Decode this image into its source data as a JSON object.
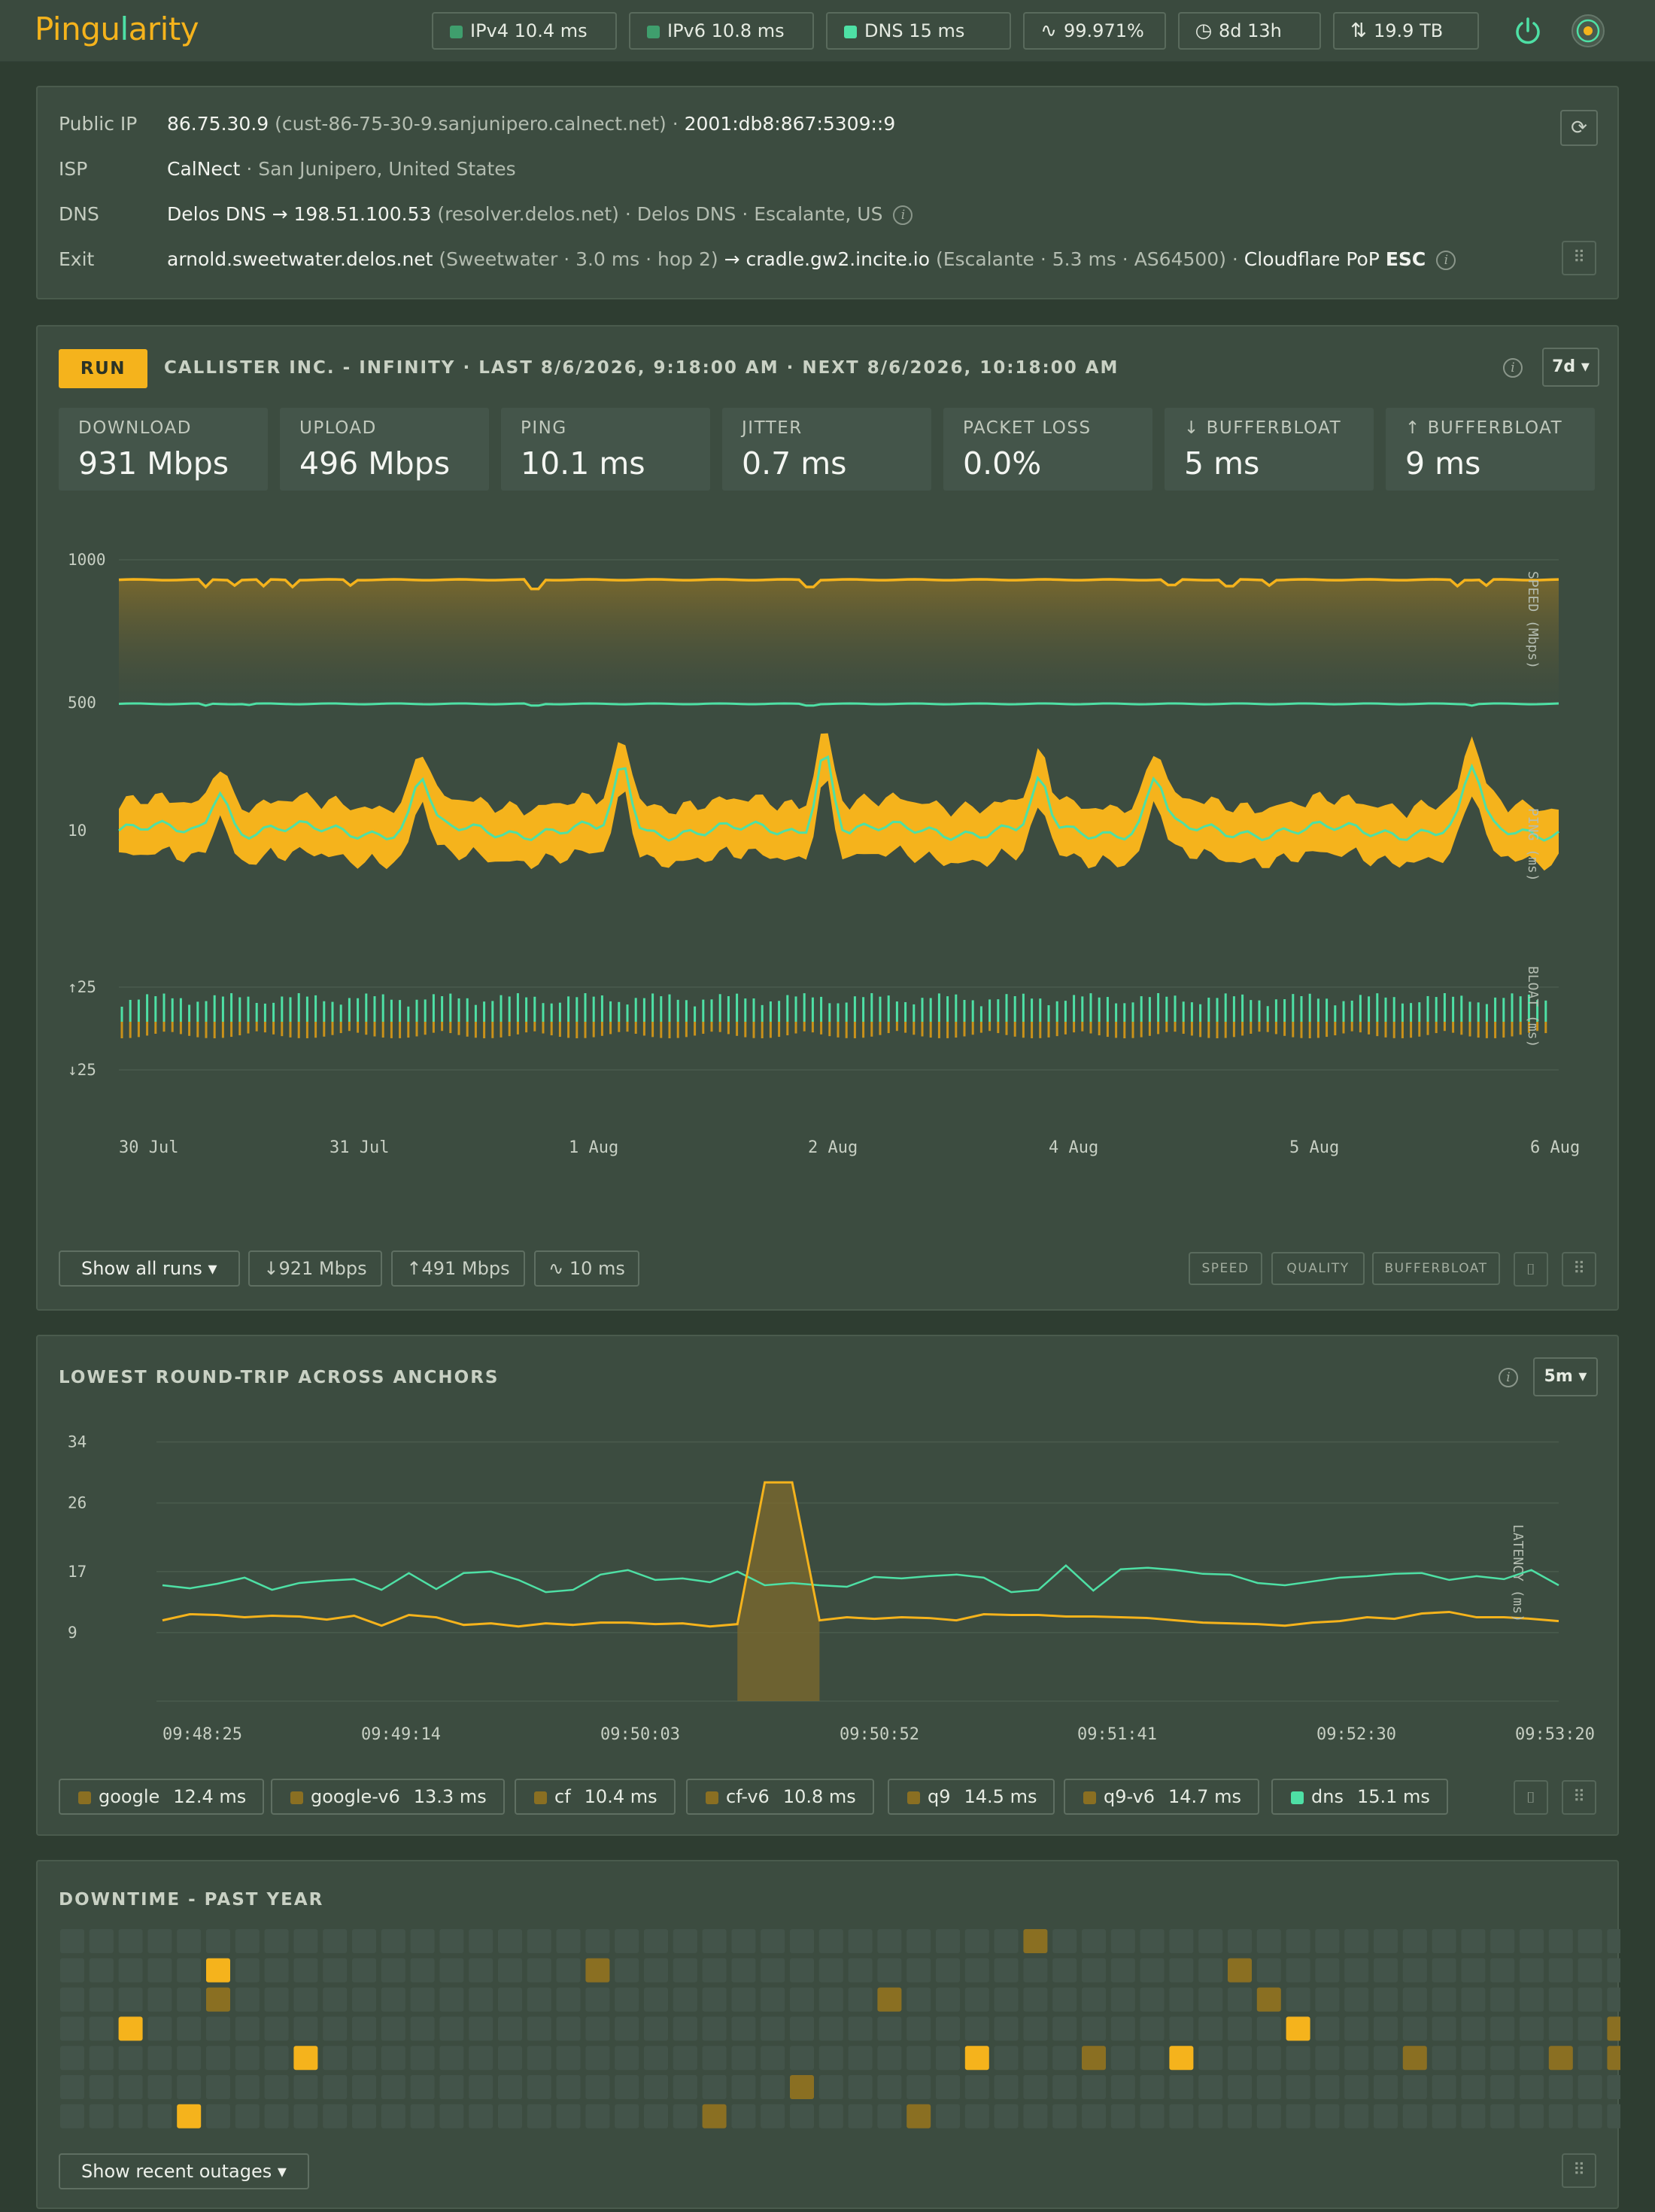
{
  "app": {
    "logo_prefix": "Pingu",
    "logo_accent": "l",
    "logo_suffix": "arity"
  },
  "topbar": {
    "pills": [
      {
        "icon": "status-square",
        "text": "IPv4 10.4 ms",
        "color": "#3f9e6d"
      },
      {
        "icon": "status-square",
        "text": "IPv6 10.8 ms",
        "color": "#3f9e6d"
      },
      {
        "icon": "status-square",
        "text": "DNS 15 ms",
        "color": "#4ee0a5"
      },
      {
        "icon": "pulse-icon",
        "text": "99.971%"
      },
      {
        "icon": "clock-icon",
        "text": "8d 13h"
      },
      {
        "icon": "transfer-icon",
        "text": "19.9 TB"
      }
    ]
  },
  "info": {
    "public_ip": {
      "label": "Public IP",
      "ip": "86.75.30.9",
      "host": "(cust-86-75-30-9.sanjunipero.calnect.net)",
      "sep": "·",
      "ipv6": "2001:db8:867:5309::9"
    },
    "isp": {
      "label": "ISP",
      "name": "CalNect",
      "rest": "· San Junipero, United States"
    },
    "dns": {
      "label": "DNS",
      "name": "Delos DNS",
      "arrow": "→",
      "ip": "198.51.100.53",
      "rest": "(resolver.delos.net) · Delos DNS · Escalante, US"
    },
    "exit": {
      "label": "Exit",
      "hop1": "arnold.sweetwater.delos.net",
      "hop1_meta": "(Sweetwater · 3.0 ms · hop 2)",
      "arrow": "→",
      "hop2": "cradle.gw2.incite.io",
      "hop2_meta": "(Escalante · 5.3 ms · AS64500) ·",
      "pop_label": "Cloudflare PoP",
      "pop": "ESC"
    }
  },
  "speed": {
    "run_label": "RUN",
    "title": "CALLISTER INC. - INFINITY · LAST 8/6/2026, 9:18:00 AM · NEXT 8/6/2026, 10:18:00 AM",
    "range": "7d ▾",
    "stats": [
      {
        "label": "DOWNLOAD",
        "value": "931 Mbps"
      },
      {
        "label": "UPLOAD",
        "value": "496 Mbps"
      },
      {
        "label": "PING",
        "value": "10.1 ms"
      },
      {
        "label": "JITTER",
        "value": "0.7 ms"
      },
      {
        "label": "PACKET LOSS",
        "value": "0.0%"
      },
      {
        "label": "↓ BUFFERBLOAT",
        "value": "5 ms"
      },
      {
        "label": "↑ BUFFERBLOAT",
        "value": "9 ms"
      }
    ],
    "show_runs": "Show all runs ▾",
    "chips": [
      "↓921 Mbps",
      "↑491 Mbps",
      "∿ 10 ms"
    ],
    "toggles": [
      "SPEED",
      "QUALITY",
      "BUFFERBLOAT"
    ]
  },
  "anchors": {
    "title": "LOWEST ROUND-TRIP ACROSS ANCHORS",
    "range": "5m ▾",
    "legend": [
      {
        "name": "google",
        "value": "12.4 ms",
        "color": "#8a6f22"
      },
      {
        "name": "google-v6",
        "value": "13.3 ms",
        "color": "#8a6f22"
      },
      {
        "name": "cf",
        "value": "10.4 ms",
        "color": "#8a6f22"
      },
      {
        "name": "cf-v6",
        "value": "10.8 ms",
        "color": "#8a6f22"
      },
      {
        "name": "q9",
        "value": "14.5 ms",
        "color": "#8a6f22"
      },
      {
        "name": "q9-v6",
        "value": "14.7 ms",
        "color": "#8a6f22"
      },
      {
        "name": "dns",
        "value": "15.1 ms",
        "color": "#4ee0a5"
      }
    ]
  },
  "downtime": {
    "title": "DOWNTIME - PAST YEAR",
    "button": "Show recent outages ▾"
  },
  "chart_data": [
    {
      "type": "line",
      "title": "",
      "layers": [
        "SPEED (Mbps)",
        "PING (ms)",
        "BLOAT (ms)"
      ],
      "x_ticks": [
        "30 Jul",
        "31 Jul",
        "1 Aug",
        "2 Aug",
        "4 Aug",
        "5 Aug",
        "6 Aug"
      ],
      "speed_ticks": [
        "1000",
        "500"
      ],
      "ping_ticks": [
        "10"
      ],
      "bloat_ticks": [
        "↑25",
        "↓25"
      ],
      "speed_ylim": [
        0,
        1000
      ],
      "series": [
        {
          "name": "",
          "color": "#f5b31c",
          "baseline": 930,
          "dips": [
            [
              0.06,
              905
            ],
            [
              0.08,
              910
            ],
            [
              0.1,
              908
            ],
            [
              0.12,
              905
            ],
            [
              0.16,
              910
            ],
            [
              0.29,
              898
            ],
            [
              0.48,
              905
            ],
            [
              0.73,
              912
            ],
            [
              0.77,
              908
            ],
            [
              0.8,
              910
            ],
            [
              0.93,
              908
            ],
            [
              0.95,
              910
            ]
          ]
        },
        {
          "name": "",
          "color": "#4ee0a5",
          "baseline": 496,
          "dips": [
            [
              0.06,
              490
            ],
            [
              0.09,
              492
            ],
            [
              0.29,
              490
            ],
            [
              0.48,
              490
            ],
            [
              0.94,
              490
            ]
          ]
        }
      ],
      "ping_band": {
        "baseline": 10.0,
        "width": 1.2,
        "peaks": [
          [
            0.07,
            12.5
          ],
          [
            0.21,
            13.0
          ],
          [
            0.35,
            13.5
          ],
          [
            0.49,
            14.5
          ],
          [
            0.64,
            12.5
          ],
          [
            0.72,
            13.0
          ],
          [
            0.94,
            13.5
          ]
        ]
      }
    },
    {
      "type": "line",
      "title": "",
      "ylabel": "LATENCY (ms)",
      "y_ticks": [
        34,
        26,
        17,
        9
      ],
      "ylim": [
        0,
        38
      ],
      "x_ticks": [
        "09:48:25",
        "09:49:14",
        "09:50:03",
        "09:50:52",
        "09:51:41",
        "09:52:30",
        "09:53:20"
      ],
      "series": [
        {
          "name": "",
          "color": "#4ee0a5",
          "values": [
            15.2,
            14.8,
            15.4,
            16.2,
            14.6,
            15.5,
            15.8,
            16.0,
            14.6,
            16.8,
            14.7,
            16.8,
            17.0,
            15.9,
            14.3,
            14.6,
            16.6,
            17.2,
            15.9,
            16.1,
            15.6,
            17.0,
            15.2,
            15.5,
            15.2,
            15.0,
            16.3,
            16.1,
            16.4,
            16.6,
            16.2,
            14.3,
            14.6,
            17.8,
            14.5,
            17.3,
            17.5,
            17.2,
            16.7,
            16.6,
            15.5,
            15.2,
            15.7,
            16.2,
            16.4,
            16.7,
            16.8,
            15.9,
            16.4,
            16.0,
            17.2,
            15.2
          ]
        },
        {
          "name": "",
          "color": "#f5b31c",
          "values": [
            10.6,
            11.4,
            11.3,
            11.0,
            11.2,
            11.1,
            10.7,
            11.2,
            9.9,
            11.3,
            11.0,
            10.0,
            10.2,
            9.8,
            10.2,
            10.0,
            10.3,
            10.3,
            10.1,
            10.2,
            9.8,
            10.1,
            28.7,
            28.7,
            10.6,
            11.0,
            10.8,
            11.0,
            10.9,
            10.6,
            11.4,
            11.3,
            11.3,
            11.1,
            11.1,
            11.0,
            10.9,
            10.6,
            10.3,
            10.2,
            10.1,
            9.9,
            10.3,
            10.5,
            11.0,
            10.8,
            11.5,
            11.7,
            11.0,
            11.0,
            10.8,
            10.5
          ]
        }
      ]
    }
  ],
  "downtime_cells": [
    {
      "col": 2,
      "row": 3,
      "level": 2
    },
    {
      "col": 4,
      "row": 6,
      "level": 2
    },
    {
      "col": 5,
      "row": 1,
      "level": 2
    },
    {
      "col": 5,
      "row": 2,
      "level": 1
    },
    {
      "col": 8,
      "row": 4,
      "level": 2
    },
    {
      "col": 18,
      "row": 1,
      "level": 1
    },
    {
      "col": 22,
      "row": 6,
      "level": 1
    },
    {
      "col": 25,
      "row": 5,
      "level": 1
    },
    {
      "col": 28,
      "row": 2,
      "level": 1
    },
    {
      "col": 29,
      "row": 6,
      "level": 1
    },
    {
      "col": 31,
      "row": 4,
      "level": 2
    },
    {
      "col": 33,
      "row": 0,
      "level": 1
    },
    {
      "col": 35,
      "row": 4,
      "level": 1
    },
    {
      "col": 38,
      "row": 4,
      "level": 2
    },
    {
      "col": 40,
      "row": 1,
      "level": 1
    },
    {
      "col": 41,
      "row": 2,
      "level": 1
    },
    {
      "col": 42,
      "row": 3,
      "level": 2
    },
    {
      "col": 46,
      "row": 4,
      "level": 1
    },
    {
      "col": 51,
      "row": 4,
      "level": 1
    },
    {
      "col": 53,
      "row": 3,
      "level": 1
    },
    {
      "col": 53,
      "row": 4,
      "level": 1
    }
  ]
}
